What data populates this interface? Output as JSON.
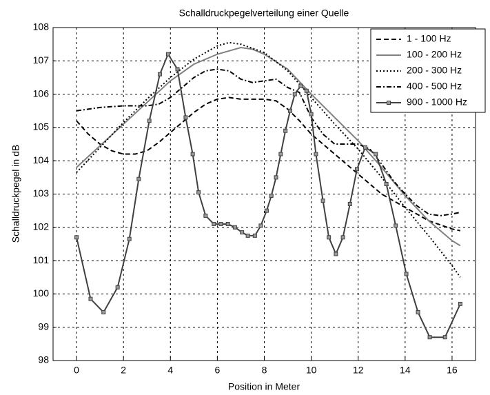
{
  "chart_data": {
    "type": "line",
    "title": "Schalldruckpegelverteilung einer Quelle",
    "xlabel": "Position in Meter",
    "ylabel": "Schalldruckpegel in dB",
    "xlim": [
      -1,
      17
    ],
    "xticks": [
      0,
      2,
      4,
      6,
      8,
      10,
      12,
      14,
      16
    ],
    "ylim": [
      98,
      108
    ],
    "yticks": [
      98,
      99,
      100,
      101,
      102,
      103,
      104,
      105,
      106,
      107,
      108
    ],
    "grid": true,
    "legend": "upper right",
    "series": [
      {
        "name": "1 - 100 Hz",
        "color": "#000000",
        "dash": "dashed",
        "x": [
          0,
          0.5,
          1,
          1.5,
          2,
          2.5,
          3,
          3.5,
          4,
          4.5,
          5,
          5.5,
          6,
          6.5,
          7,
          8,
          8.5,
          9,
          9.5,
          10,
          11,
          12,
          13,
          14,
          15,
          16,
          16.35
        ],
        "values": [
          105.2,
          104.8,
          104.5,
          104.3,
          104.2,
          104.2,
          104.3,
          104.55,
          104.85,
          105.15,
          105.45,
          105.7,
          105.85,
          105.9,
          105.85,
          105.85,
          105.8,
          105.55,
          105.2,
          104.8,
          104.2,
          103.6,
          103.0,
          102.6,
          102.2,
          101.95,
          101.9
        ]
      },
      {
        "name": "100 - 200 Hz",
        "color": "#808080",
        "dash": "solid",
        "x": [
          0,
          1,
          2,
          3,
          4,
          5,
          6,
          6.5,
          7,
          7.5,
          8,
          9,
          10,
          11,
          12,
          13,
          14,
          15,
          16,
          16.35
        ],
        "values": [
          103.8,
          104.45,
          105.1,
          105.75,
          106.4,
          106.9,
          107.2,
          107.3,
          107.4,
          107.35,
          107.2,
          106.75,
          106.0,
          105.3,
          104.6,
          103.8,
          102.95,
          102.2,
          101.6,
          101.45
        ]
      },
      {
        "name": "200 - 300 Hz",
        "color": "#000000",
        "dash": "dotted",
        "x": [
          0,
          1,
          2,
          3,
          4,
          5,
          6,
          6.5,
          7,
          8,
          9,
          10,
          11,
          12,
          13,
          14,
          15,
          16,
          16.35
        ],
        "values": [
          103.65,
          104.4,
          105.15,
          105.85,
          106.5,
          107.05,
          107.45,
          107.55,
          107.5,
          107.25,
          106.7,
          105.9,
          105.1,
          104.35,
          103.5,
          102.6,
          101.75,
          100.85,
          100.5
        ]
      },
      {
        "name": "400 - 500 Hz",
        "color": "#000000",
        "dash": "dashdot",
        "x": [
          0,
          1,
          2,
          3,
          3.5,
          4,
          4.5,
          5,
          5.5,
          6,
          6.5,
          7,
          7.5,
          8,
          8.5,
          9,
          9.5,
          10,
          10.5,
          11,
          12,
          12.5,
          13,
          13.5,
          14,
          14.5,
          15,
          15.5,
          16,
          16.35
        ],
        "values": [
          105.5,
          105.6,
          105.65,
          105.65,
          105.7,
          105.9,
          106.2,
          106.5,
          106.7,
          106.75,
          106.7,
          106.45,
          106.35,
          106.4,
          106.45,
          106.2,
          106.05,
          105.3,
          104.8,
          104.5,
          104.5,
          104.35,
          103.9,
          103.4,
          103.0,
          102.65,
          102.4,
          102.35,
          102.4,
          102.45
        ]
      },
      {
        "name": "900 - 1000 Hz",
        "color": "#404040",
        "dash": "solid",
        "marker": "square",
        "x": [
          0,
          0.6,
          1.15,
          1.75,
          2.25,
          2.65,
          3.1,
          3.55,
          3.9,
          4.3,
          4.65,
          4.95,
          5.2,
          5.5,
          5.85,
          6.15,
          6.45,
          6.75,
          7.05,
          7.3,
          7.6,
          7.85,
          8.1,
          8.3,
          8.5,
          8.7,
          8.9,
          9.1,
          9.3,
          9.55,
          9.8,
          10.0,
          10.2,
          10.5,
          10.75,
          11.05,
          11.35,
          11.65,
          11.95,
          12.3,
          12.75,
          13.2,
          13.6,
          14.05,
          14.55,
          15.05,
          15.7,
          16.35
        ],
        "values": [
          101.7,
          99.85,
          99.45,
          100.2,
          101.65,
          103.45,
          105.2,
          106.6,
          107.2,
          106.75,
          105.3,
          104.2,
          103.05,
          102.35,
          102.1,
          102.1,
          102.1,
          102.0,
          101.85,
          101.75,
          101.75,
          102.05,
          102.5,
          102.95,
          103.5,
          104.2,
          104.9,
          105.5,
          106.0,
          106.25,
          106.1,
          105.4,
          104.2,
          102.8,
          101.7,
          101.2,
          101.7,
          102.7,
          103.75,
          104.4,
          104.2,
          103.3,
          102.05,
          100.6,
          99.45,
          98.7,
          98.7,
          99.7
        ]
      }
    ]
  }
}
